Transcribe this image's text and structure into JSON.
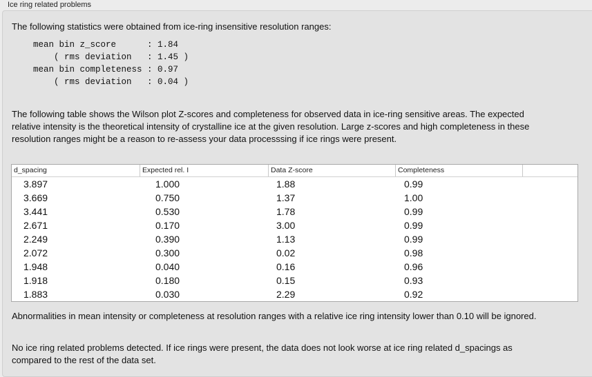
{
  "group_title": "Ice ring related problems",
  "intro": "The following statistics were obtained from ice-ring insensitive resolution ranges:",
  "stats": "mean bin z_score      : 1.84\n    ( rms deviation   : 1.45 )\nmean bin completeness : 0.97\n    ( rms deviation   : 0.04 )",
  "table_intro": "The following table shows the Wilson plot Z-scores and completeness for observed data in ice-ring sensitive areas. The expected relative intensity is the theoretical intensity of crystalline ice at the given resolution. Large z-scores and high completeness in these resolution ranges might be a reason to re-assess your data processsing if ice rings were present.",
  "table": {
    "columns": [
      "d_spacing",
      "Expected rel. I",
      "Data Z-score",
      "Completeness"
    ],
    "rows": [
      [
        "3.897",
        "1.000",
        "1.88",
        "0.99"
      ],
      [
        "3.669",
        "0.750",
        "1.37",
        "1.00"
      ],
      [
        "3.441",
        "0.530",
        "1.78",
        "0.99"
      ],
      [
        "2.671",
        "0.170",
        "3.00",
        "0.99"
      ],
      [
        "2.249",
        "0.390",
        "1.13",
        "0.99"
      ],
      [
        "2.072",
        "0.300",
        "0.02",
        "0.98"
      ],
      [
        "1.948",
        "0.040",
        "0.16",
        "0.96"
      ],
      [
        "1.918",
        "0.180",
        "0.15",
        "0.93"
      ],
      [
        "1.883",
        "0.030",
        "2.29",
        "0.92"
      ]
    ]
  },
  "note": "Abnormalities in mean intensity or completeness at resolution ranges with a relative ice ring intensity lower than 0.10 will be ignored.",
  "conclusion": "No ice ring related problems detected. If ice rings were present, the data does not look worse at ice ring related d_spacings as compared to the rest of the data set."
}
